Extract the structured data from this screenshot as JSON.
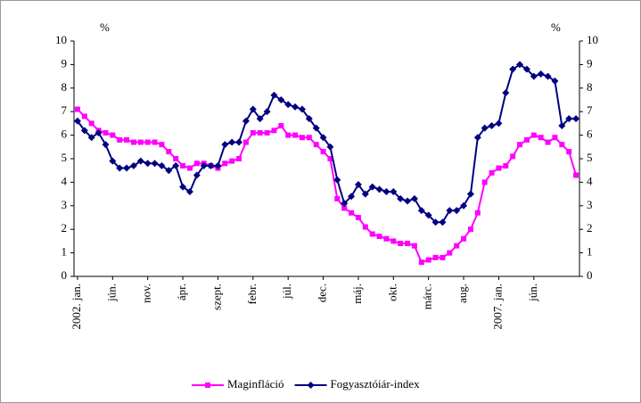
{
  "chart_data": {
    "type": "line",
    "y_unit_left": "%",
    "y_unit_right": "%",
    "categories": [
      "2002. jan.",
      null,
      null,
      null,
      null,
      "jún.",
      null,
      null,
      null,
      null,
      "nov.",
      null,
      null,
      null,
      null,
      "ápr.",
      null,
      null,
      null,
      null,
      "szept.",
      null,
      null,
      null,
      null,
      "febr.",
      null,
      null,
      null,
      null,
      "júl.",
      null,
      null,
      null,
      null,
      "dec.",
      null,
      null,
      null,
      null,
      "máj.",
      null,
      null,
      null,
      null,
      "okt.",
      null,
      null,
      null,
      null,
      "márc.",
      null,
      null,
      null,
      null,
      "aug.",
      null,
      null,
      null,
      null,
      "2007. jan.",
      null,
      null,
      null,
      null,
      "jún.",
      null,
      null,
      null,
      null,
      null,
      null
    ],
    "series": [
      {
        "name": "Maginfláció",
        "color": "#ff00ff",
        "marker": "square",
        "values": [
          7.1,
          6.8,
          6.5,
          6.2,
          6.1,
          6.0,
          5.8,
          5.8,
          5.7,
          5.7,
          5.7,
          5.7,
          5.6,
          5.3,
          5.0,
          4.7,
          4.6,
          4.8,
          4.8,
          4.7,
          4.6,
          4.8,
          4.9,
          5.0,
          5.7,
          6.1,
          6.1,
          6.1,
          6.2,
          6.4,
          6.0,
          6.0,
          5.9,
          5.9,
          5.6,
          5.3,
          5.0,
          3.3,
          2.9,
          2.7,
          2.5,
          2.1,
          1.8,
          1.7,
          1.6,
          1.5,
          1.4,
          1.4,
          1.3,
          0.6,
          0.7,
          0.8,
          0.8,
          1.0,
          1.3,
          1.6,
          2.0,
          2.7,
          4.0,
          4.4,
          4.6,
          4.7,
          5.1,
          5.6,
          5.8,
          6.0,
          5.9,
          5.7,
          5.9,
          5.6,
          5.3,
          4.3
        ]
      },
      {
        "name": "Fogyasztóiár-index",
        "color": "#000080",
        "marker": "diamond",
        "values": [
          6.6,
          6.2,
          5.9,
          6.1,
          5.6,
          4.9,
          4.6,
          4.6,
          4.7,
          4.9,
          4.8,
          4.8,
          4.7,
          4.5,
          4.7,
          3.8,
          3.6,
          4.3,
          4.7,
          4.7,
          4.7,
          5.6,
          5.7,
          5.7,
          6.6,
          7.1,
          6.7,
          7.0,
          7.7,
          7.5,
          7.3,
          7.2,
          7.1,
          6.7,
          6.3,
          5.9,
          5.5,
          4.1,
          3.1,
          3.4,
          3.9,
          3.5,
          3.8,
          3.7,
          3.6,
          3.6,
          3.3,
          3.2,
          3.3,
          2.8,
          2.6,
          2.3,
          2.3,
          2.8,
          2.8,
          3.0,
          3.5,
          5.9,
          6.3,
          6.4,
          6.5,
          7.8,
          8.8,
          9.0,
          8.8,
          8.5,
          8.6,
          8.5,
          8.3,
          6.4,
          6.7,
          6.7
        ]
      }
    ],
    "ylim": [
      0,
      10
    ],
    "yticks": [
      0,
      1,
      2,
      3,
      4,
      5,
      6,
      7,
      8,
      9,
      10
    ],
    "y2lim": [
      0,
      10
    ],
    "y2ticks": [
      0,
      1,
      2,
      3,
      4,
      5,
      6,
      7,
      8,
      9,
      10
    ],
    "legend": "bottom"
  }
}
